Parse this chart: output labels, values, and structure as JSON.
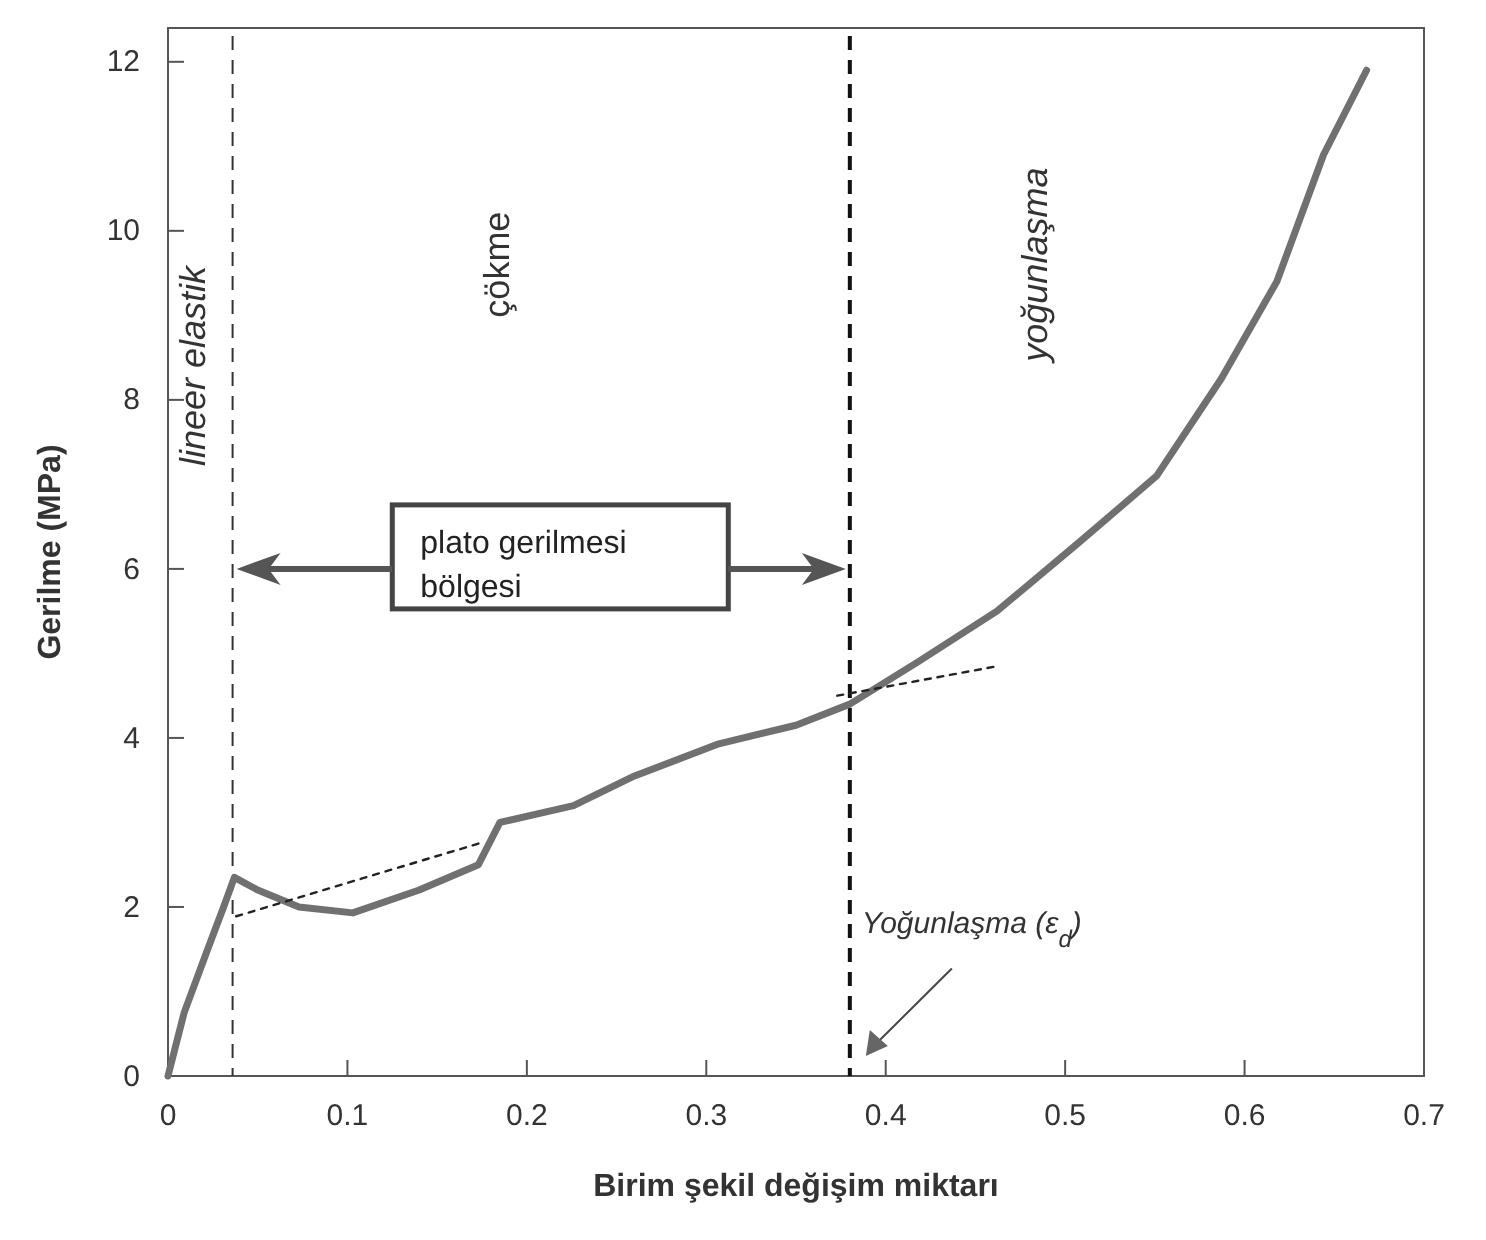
{
  "chart_data": {
    "type": "line",
    "xlabel": "Birim şekil değişim miktarı",
    "ylabel": "Gerilme (MPa)",
    "xlim": [
      0,
      0.7
    ],
    "ylim": [
      0,
      12.4
    ],
    "xticks": [
      0,
      0.1,
      0.2,
      0.3,
      0.4,
      0.5,
      0.6,
      0.7
    ],
    "yticks": [
      0,
      2,
      4,
      6,
      8,
      10,
      12
    ],
    "grid": false,
    "marker": "none",
    "series": [
      {
        "color": "#707070",
        "line_style": "solid",
        "x": [
          0,
          0.009,
          0.023,
          0.031,
          0.037,
          0.05,
          0.073,
          0.103,
          0.14,
          0.173,
          0.185,
          0.226,
          0.26,
          0.307,
          0.35,
          0.38,
          0.418,
          0.462,
          0.507,
          0.551,
          0.587,
          0.618,
          0.644,
          0.668
        ],
        "values": [
          0,
          0.75,
          1.55,
          2.0,
          2.35,
          2.2,
          2.0,
          1.93,
          2.2,
          2.5,
          3.0,
          3.2,
          3.55,
          3.93,
          4.15,
          4.4,
          4.9,
          5.5,
          6.3,
          7.1,
          8.25,
          9.4,
          10.9,
          11.9
        ]
      },
      {
        "color": "#222222",
        "line_style": "dotted",
        "x": [
          0.038,
          0.173
        ],
        "values": [
          1.89,
          2.75
        ]
      },
      {
        "color": "#222222",
        "line_style": "dotted",
        "x": [
          0.373,
          0.46
        ],
        "values": [
          4.5,
          4.84
        ]
      }
    ],
    "ref_lines": [
      {
        "axis": "x",
        "value": 0.036,
        "line_style": "dashed",
        "color": "#333333"
      },
      {
        "axis": "x",
        "value": 0.38,
        "line_style": "dashed",
        "color": "#111111",
        "label": "Yoğunlaşma (ε$_{d}$)"
      }
    ],
    "annotations": [
      "lineer elastik",
      "çökme",
      "yoğunlaşma",
      "plato gerilmesi bölgesi"
    ]
  }
}
